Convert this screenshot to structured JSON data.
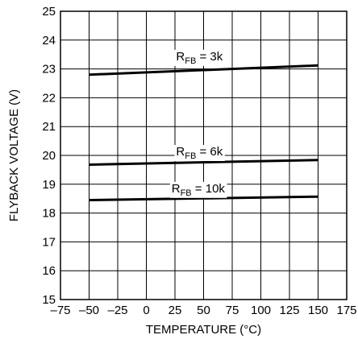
{
  "chart_data": {
    "type": "line",
    "title": "",
    "xlabel": "TEMPERATURE (°C)",
    "ylabel": "FLYBACK VOLTAGE (V)",
    "xlim": [
      -75,
      175
    ],
    "ylim": [
      15,
      25
    ],
    "x_ticks": [
      -75,
      -50,
      -25,
      0,
      25,
      50,
      75,
      100,
      125,
      150,
      175
    ],
    "x_tick_labels": [
      "–75",
      "–50",
      "–25",
      "0",
      "25",
      "50",
      "75",
      "100",
      "125",
      "150",
      "175"
    ],
    "y_ticks": [
      15,
      16,
      17,
      18,
      19,
      20,
      21,
      22,
      23,
      24,
      25
    ],
    "y_tick_labels": [
      "15",
      "16",
      "17",
      "18",
      "19",
      "20",
      "21",
      "22",
      "23",
      "24",
      "25"
    ],
    "grid": true,
    "series": [
      {
        "name": "RFB = 3k",
        "label_main": "R",
        "label_sub": "FB",
        "label_tail": " = 3k",
        "x": [
          -50,
          150
        ],
        "y": [
          22.8,
          23.12
        ],
        "label_at": [
          26,
          23.3
        ]
      },
      {
        "name": "RFB = 6k",
        "label_main": "R",
        "label_sub": "FB",
        "label_tail": " = 6k",
        "x": [
          -50,
          150
        ],
        "y": [
          19.68,
          19.84
        ],
        "label_at": [
          26,
          20.0
        ]
      },
      {
        "name": "RFB = 10k",
        "label_main": "R",
        "label_sub": "FB",
        "label_tail": " = 10k",
        "x": [
          -50,
          150
        ],
        "y": [
          18.45,
          18.57
        ],
        "label_at": [
          22,
          18.72
        ]
      }
    ]
  }
}
